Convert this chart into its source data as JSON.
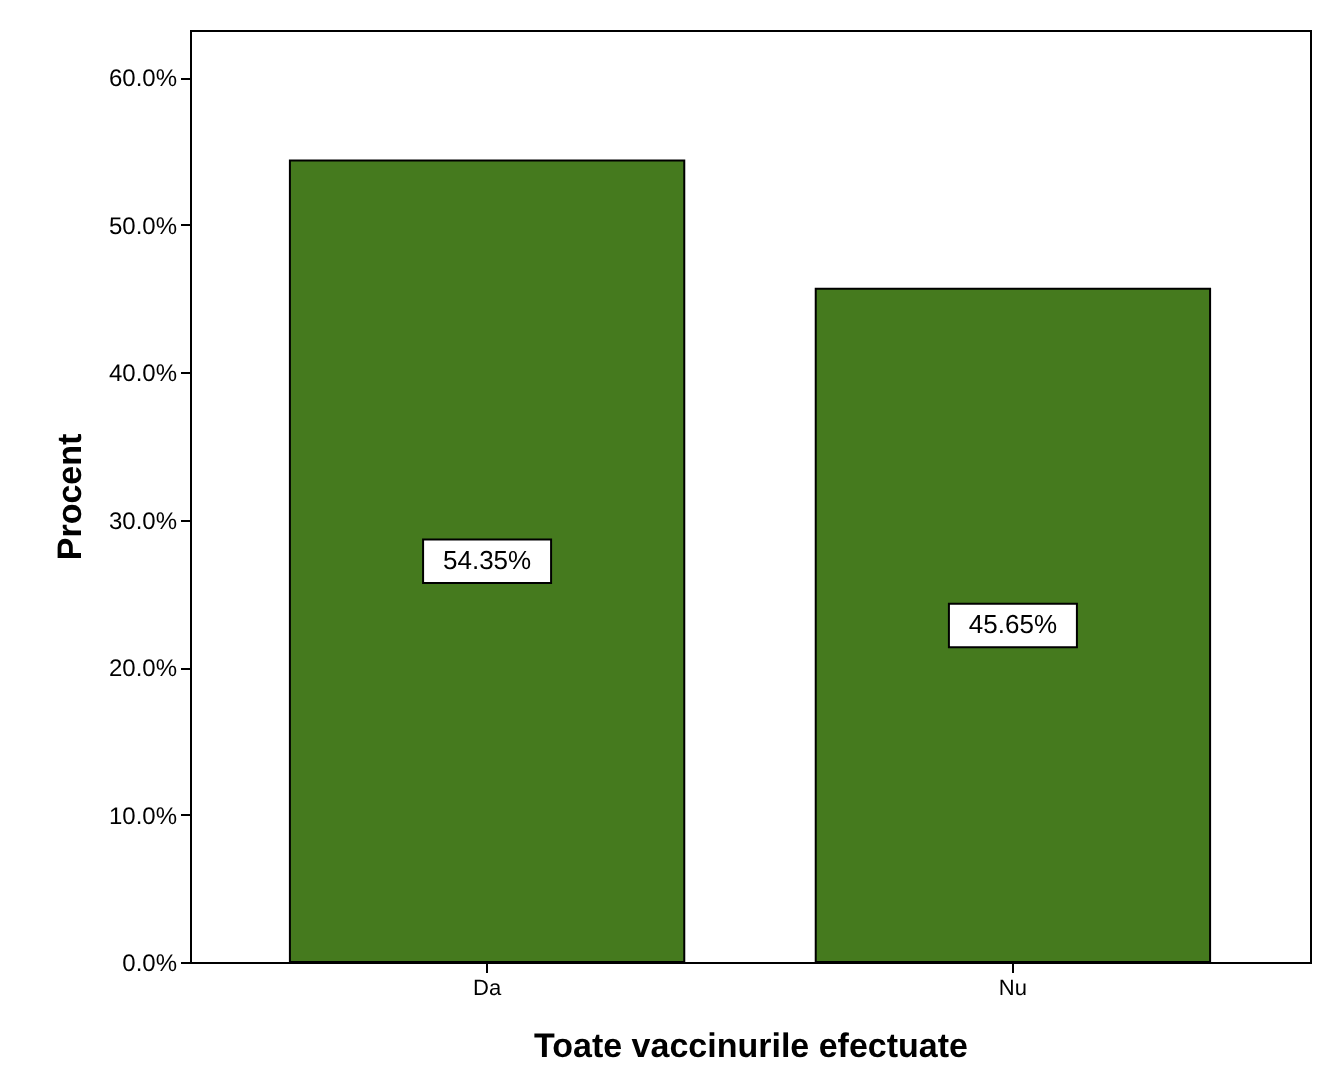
{
  "chart_data": {
    "type": "bar",
    "xlabel": "Toate vaccinurile efectuate",
    "ylabel": "Procent",
    "categories": [
      "Da",
      "Nu"
    ],
    "values": [
      54.35,
      45.65
    ],
    "color": "#457a1e",
    "value_labels": [
      "54.35%",
      "45.65%"
    ],
    "ylim": [
      0,
      63.2
    ],
    "yticks": [
      {
        "value": 0,
        "label": "0.0%"
      },
      {
        "value": 10,
        "label": "10.0%"
      },
      {
        "value": 20,
        "label": "20.0%"
      },
      {
        "value": 30,
        "label": "30.0%"
      },
      {
        "value": 40,
        "label": "40.0%"
      },
      {
        "value": 50,
        "label": "50.0%"
      },
      {
        "value": 60,
        "label": "60.0%"
      }
    ],
    "grid": false
  }
}
